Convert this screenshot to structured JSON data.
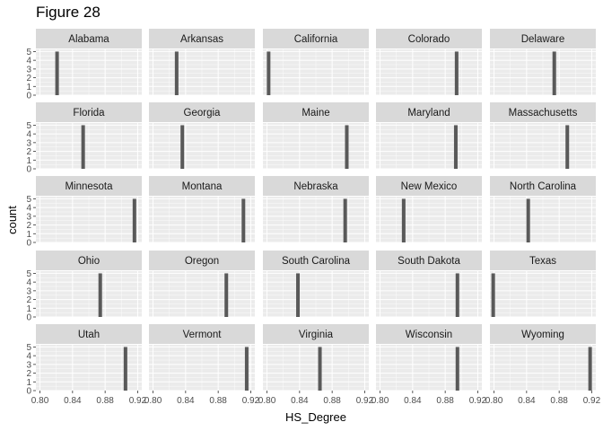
{
  "figure_title": "Figure 28",
  "chart_data": {
    "type": "histogram-facets",
    "xlabel": "HS_Degree",
    "ylabel": "count",
    "xlim": [
      0.795,
      0.925
    ],
    "ylim": [
      0,
      5.25
    ],
    "x_ticks": [
      0.8,
      0.84,
      0.88,
      0.92
    ],
    "x_tick_labels": [
      "0.80",
      "0.84",
      "0.88",
      "0.92"
    ],
    "y_ticks": [
      0,
      1,
      2,
      3,
      4,
      5
    ],
    "y_tick_labels": [
      "0",
      "1",
      "2",
      "3",
      "4",
      "5"
    ],
    "facets": [
      {
        "label": "Alabama",
        "value": 0.821,
        "count": 5
      },
      {
        "label": "Arkansas",
        "value": 0.829,
        "count": 5
      },
      {
        "label": "California",
        "value": 0.802,
        "count": 5
      },
      {
        "label": "Colorado",
        "value": 0.894,
        "count": 5
      },
      {
        "label": "Delaware",
        "value": 0.874,
        "count": 5
      },
      {
        "label": "Florida",
        "value": 0.853,
        "count": 5
      },
      {
        "label": "Georgia",
        "value": 0.836,
        "count": 5
      },
      {
        "label": "Maine",
        "value": 0.898,
        "count": 5
      },
      {
        "label": "Maryland",
        "value": 0.893,
        "count": 5
      },
      {
        "label": "Massachusetts",
        "value": 0.89,
        "count": 5
      },
      {
        "label": "Minnesota",
        "value": 0.916,
        "count": 5
      },
      {
        "label": "Montana",
        "value": 0.911,
        "count": 5
      },
      {
        "label": "Nebraska",
        "value": 0.896,
        "count": 5
      },
      {
        "label": "New Mexico",
        "value": 0.829,
        "count": 5
      },
      {
        "label": "North Carolina",
        "value": 0.842,
        "count": 5
      },
      {
        "label": "Ohio",
        "value": 0.874,
        "count": 5
      },
      {
        "label": "Oregon",
        "value": 0.89,
        "count": 5
      },
      {
        "label": "South Carolina",
        "value": 0.838,
        "count": 5
      },
      {
        "label": "South Dakota",
        "value": 0.895,
        "count": 5
      },
      {
        "label": "Texas",
        "value": 0.799,
        "count": 5
      },
      {
        "label": "Utah",
        "value": 0.905,
        "count": 5
      },
      {
        "label": "Vermont",
        "value": 0.915,
        "count": 5
      },
      {
        "label": "Virginia",
        "value": 0.865,
        "count": 5
      },
      {
        "label": "Wisconsin",
        "value": 0.895,
        "count": 5
      },
      {
        "label": "Wyoming",
        "value": 0.918,
        "count": 5
      }
    ],
    "colors": {
      "panel_bg": "#EBEBEB",
      "strip_bg": "#D9D9D9",
      "grid_major": "#FFFFFF",
      "bar": "#595959",
      "text": "#1A1A1A",
      "axis_text": "#4D4D4D"
    },
    "grid": true,
    "legend": "none"
  }
}
